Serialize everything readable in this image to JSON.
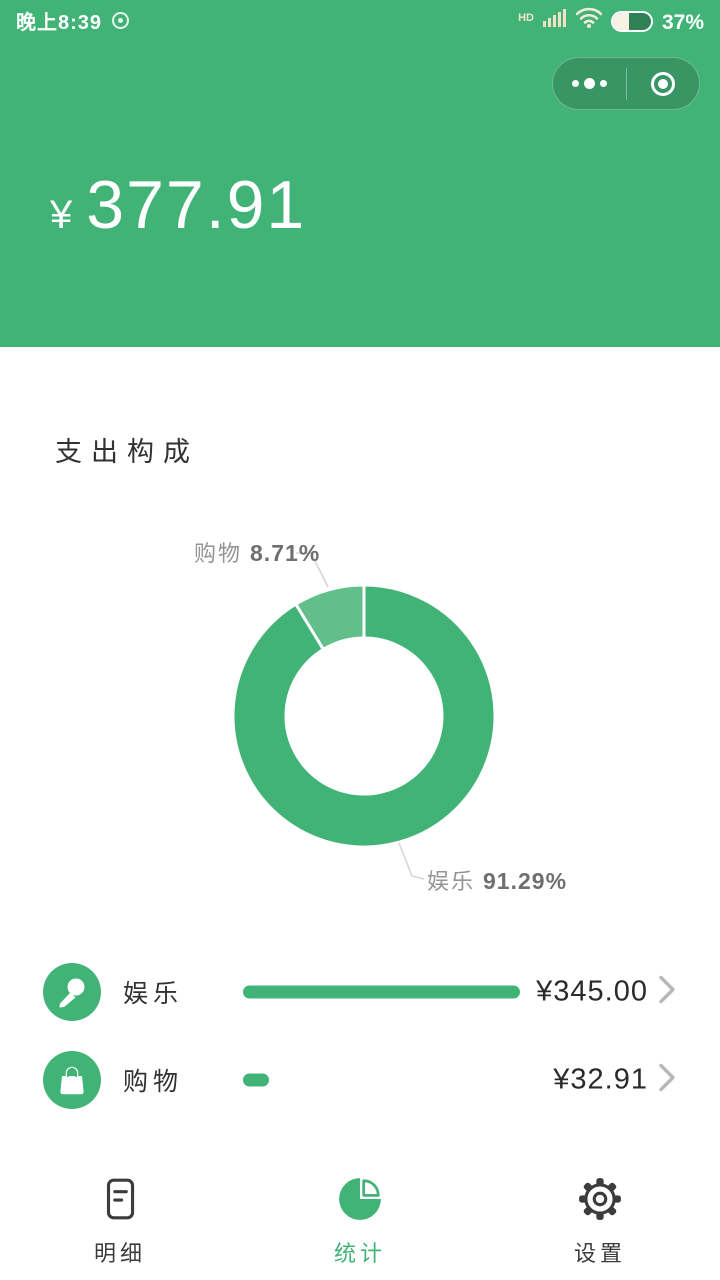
{
  "colors": {
    "primary_green": "#42b377",
    "light_green": "#62bf8b",
    "capsule_bg": "rgba(0,0,0,0.16)",
    "text_dark": "#2a2a2a",
    "label_gray": "#949494",
    "leader_line": "#d6d6d6"
  },
  "status_bar": {
    "time": "晚上8:39",
    "hd_label": "HD",
    "battery_percent": "37%",
    "icons": [
      "app-dot-icon",
      "signal-bars-icon",
      "wifi-icon",
      "battery-icon"
    ]
  },
  "capsule": {
    "menu_icon": "more-dots-icon",
    "exit_icon": "exit-circle-icon"
  },
  "header": {
    "currency_symbol": "¥",
    "amount": "377.91"
  },
  "section_title": "支出构成",
  "chart_data": {
    "type": "donut",
    "title": "支出构成",
    "categories": [
      "娱乐",
      "购物"
    ],
    "values": [
      345.0,
      32.91
    ],
    "percents": [
      91.29,
      8.71
    ],
    "total": 377.91,
    "start_angle_deg": 0,
    "slice_colors": [
      "#42b377",
      "#62bf8b"
    ],
    "labels": [
      {
        "name": "娱乐",
        "percent": "91.29%"
      },
      {
        "name": "购物",
        "percent": "8.71%"
      }
    ],
    "legend_position": "callout-labels",
    "inner_radius_ratio": 0.6
  },
  "category_rows": [
    {
      "name": "娱乐",
      "icon": "microphone-icon",
      "amount": "¥345.00",
      "value": 345.0
    },
    {
      "name": "购物",
      "icon": "shopping-bag-icon",
      "amount": "¥32.91",
      "value": 32.91
    }
  ],
  "tab_bar": [
    {
      "label": "明细",
      "icon": "list-document-icon",
      "active": false
    },
    {
      "label": "统计",
      "icon": "pie-chart-icon",
      "active": true
    },
    {
      "label": "设置",
      "icon": "gear-icon",
      "active": false
    }
  ]
}
